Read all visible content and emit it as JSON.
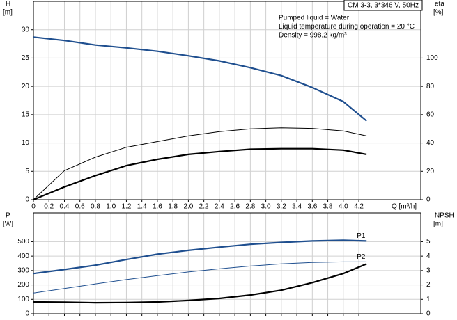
{
  "chart_data": [
    {
      "type": "line",
      "y_label": "H",
      "y_unit": "[m]",
      "y2_label": "eta",
      "y2_unit": "[%]",
      "x_label": "Q [m³/h]",
      "box_title": "CM 3-3, 3*346 V, 50Hz",
      "annotations": [
        "Pumped liquid = Water",
        "Liquid temperature during operation = 20 °C",
        "Density = 998.2 kg/m³"
      ],
      "xlim": [
        0,
        5
      ],
      "ylim": [
        0,
        35
      ],
      "y2lim": [
        0,
        140
      ],
      "xticks": [
        0,
        0.2,
        0.4,
        0.6,
        0.8,
        {
          "value": 1,
          "label": "1.0"
        },
        1.2,
        1.4,
        1.6,
        1.8,
        {
          "value": 2,
          "label": "2.0"
        },
        2.2,
        2.4,
        2.6,
        2.8,
        {
          "value": 3,
          "label": "3.0"
        },
        3.2,
        3.4,
        3.6,
        3.8,
        {
          "value": 4,
          "label": "4.0"
        },
        4.2
      ],
      "yticks": [
        0,
        5,
        10,
        15,
        20,
        25,
        30
      ],
      "y2ticks": [
        0,
        20,
        40,
        60,
        80,
        100
      ],
      "grid": true,
      "show_xtick_labels": true,
      "x": [
        0,
        0.4,
        0.8,
        1.2,
        1.6,
        2.0,
        2.4,
        2.8,
        3.2,
        3.6,
        4.0,
        4.3
      ],
      "series": [
        {
          "color": "#1f4f8f",
          "style": "thick",
          "values": [
            28.7,
            28.1,
            27.3,
            26.8,
            26.2,
            25.4,
            24.5,
            23.3,
            21.9,
            19.8,
            17.3,
            13.9
          ]
        },
        {
          "color": "#000000",
          "style": "thin",
          "axis": "y2",
          "values": [
            0,
            20.5,
            30,
            37,
            41,
            45,
            48,
            50,
            50.7,
            50.3,
            48.5,
            45
          ]
        },
        {
          "color": "#000000",
          "style": "thick",
          "axis": "y2",
          "values": [
            0,
            9,
            17,
            24,
            28.5,
            32,
            34,
            35.6,
            36,
            36,
            35,
            32
          ]
        }
      ]
    },
    {
      "type": "line",
      "y_label": "P",
      "y_unit": "[W]",
      "y2_label": "NPSH",
      "y2_unit": "[m]",
      "xlim": [
        0,
        5
      ],
      "ylim": [
        0,
        700
      ],
      "y2lim": [
        0,
        7
      ],
      "xticks": [
        0,
        0.2,
        0.4,
        0.6,
        0.8,
        1,
        1.2,
        1.4,
        1.6,
        1.8,
        2,
        2.2,
        2.4,
        2.6,
        2.8,
        3,
        3.2,
        3.4,
        3.6,
        3.8,
        4,
        4.2
      ],
      "yticks": [
        0,
        100,
        200,
        300,
        400,
        500
      ],
      "y2ticks": [
        0,
        1,
        2,
        3,
        4,
        5
      ],
      "grid": true,
      "show_xtick_labels": false,
      "x": [
        0,
        0.4,
        0.8,
        1.2,
        1.6,
        2.0,
        2.4,
        2.8,
        3.2,
        3.6,
        4.0,
        4.3
      ],
      "series": [
        {
          "name": "P1",
          "color": "#1f4f8f",
          "style": "thick",
          "values": [
            279,
            307,
            337,
            376,
            413,
            440,
            462,
            482,
            495,
            505,
            510,
            505
          ]
        },
        {
          "name": "P2",
          "color": "#1f4f8f",
          "style": "thin",
          "values": [
            144,
            175,
            207,
            237,
            264,
            290,
            312,
            331,
            346,
            356,
            360,
            360
          ]
        },
        {
          "color": "#000000",
          "style": "thick",
          "axis": "y2",
          "values": [
            0.82,
            0.8,
            0.77,
            0.78,
            0.82,
            0.92,
            1.06,
            1.3,
            1.63,
            2.16,
            2.79,
            3.46
          ]
        }
      ]
    }
  ]
}
